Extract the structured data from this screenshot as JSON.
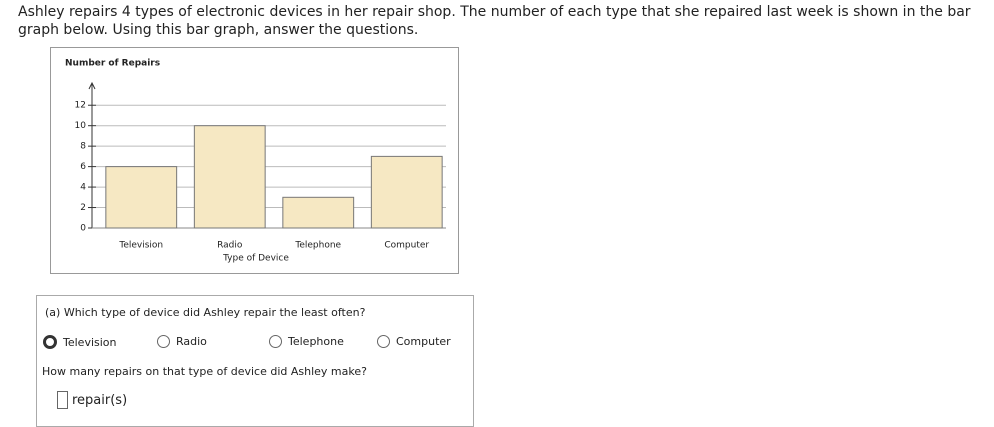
{
  "header": {
    "text": "Ashley repairs 4 types of electronic devices in her repair shop. The number of each type that she repaired last week is shown in the bar graph below. Using this bar graph, answer the questions."
  },
  "chart_data": {
    "type": "bar",
    "ylabel": "Number of Repairs",
    "xlabel": "Type of Device",
    "categories": [
      "Television",
      "Radio",
      "Telephone",
      "Computer"
    ],
    "values": [
      6,
      10,
      3,
      7
    ],
    "color": "#f6e8c3",
    "ylim": [
      0,
      13
    ],
    "yticks": [
      0,
      2,
      4,
      6,
      8,
      10,
      12
    ],
    "grid": true
  },
  "question": {
    "prompt": "(a) Which type of device did Ashley repair the least often?",
    "options": [
      "Television",
      "Radio",
      "Telephone",
      "Computer"
    ],
    "followup": "How many repairs on that type of device did Ashley make?",
    "unit": "repair(s)"
  }
}
